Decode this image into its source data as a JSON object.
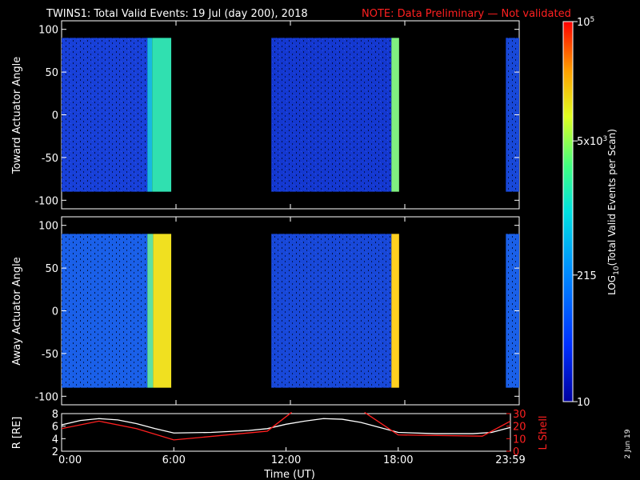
{
  "header": {
    "title": "TWINS1: Total Valid Events: 19 Jul (day 200), 2018",
    "note": "NOTE: Data Preliminary — Not validated",
    "note_color": "#ff2020"
  },
  "side_label": "2 Jun 19",
  "chart_data": [
    {
      "type": "heatmap",
      "ylabel": "Toward Actuator Angle",
      "ylim": [
        -110,
        110
      ],
      "yticks": [
        100,
        50,
        0,
        -50,
        -100
      ],
      "angle_range": [
        -90,
        90
      ],
      "xlim": [
        0,
        24
      ],
      "data_blocks": [
        {
          "start": 0.0,
          "end": 4.5,
          "level": "low",
          "color": "#1840d8"
        },
        {
          "start": 4.5,
          "end": 4.75,
          "level": "high",
          "color": "#18b8e0"
        },
        {
          "start": 4.75,
          "end": 5.75,
          "level": "high",
          "color": "#30e0b0"
        },
        {
          "start": 11.0,
          "end": 17.3,
          "level": "low",
          "color": "#1438d0"
        },
        {
          "start": 17.3,
          "end": 17.7,
          "level": "high",
          "color": "#80f080"
        },
        {
          "start": 23.3,
          "end": 24.0,
          "level": "low",
          "color": "#1848d8"
        }
      ]
    },
    {
      "type": "heatmap",
      "ylabel": "Away Actuator Angle",
      "ylim": [
        -110,
        110
      ],
      "yticks": [
        100,
        50,
        0,
        -50,
        -100
      ],
      "angle_range": [
        -90,
        90
      ],
      "xlim": [
        0,
        24
      ],
      "data_blocks": [
        {
          "start": 0.0,
          "end": 4.5,
          "level": "low",
          "color": "#1a60e8"
        },
        {
          "start": 4.5,
          "end": 4.8,
          "level": "high",
          "color": "#60e0a0"
        },
        {
          "start": 4.8,
          "end": 5.75,
          "level": "high",
          "color": "#f0e020"
        },
        {
          "start": 11.0,
          "end": 17.3,
          "level": "low",
          "color": "#1848d8"
        },
        {
          "start": 17.3,
          "end": 17.7,
          "level": "high",
          "color": "#ffd020"
        },
        {
          "start": 23.3,
          "end": 24.0,
          "level": "low",
          "color": "#1a60e8"
        }
      ]
    },
    {
      "type": "line",
      "ylabel": "R [RE]",
      "y2label": "L Shell",
      "xlabel": "Time (UT)",
      "xlim": [
        0,
        24
      ],
      "ylim": [
        2,
        8
      ],
      "yticks": [
        2,
        4,
        6,
        8
      ],
      "y2lim": [
        0,
        30
      ],
      "y2ticks": [
        0,
        10,
        20,
        30
      ],
      "xtick_labels": [
        {
          "t": 0,
          "label": "0:00"
        },
        {
          "t": 6,
          "label": "6:00"
        },
        {
          "t": 12,
          "label": "12:00"
        },
        {
          "t": 18,
          "label": "18:00"
        },
        {
          "t": 24,
          "label": "23:59"
        }
      ],
      "series": [
        {
          "color": "#ffffff",
          "x": [
            0,
            1,
            2,
            3,
            4,
            5,
            6,
            8,
            10,
            11,
            12,
            13,
            14,
            15,
            16,
            17,
            18,
            20,
            22,
            23,
            24
          ],
          "y": [
            6.2,
            6.9,
            7.2,
            7.0,
            6.4,
            5.6,
            4.9,
            5.0,
            5.3,
            5.6,
            6.3,
            6.8,
            7.2,
            7.1,
            6.6,
            5.8,
            5.0,
            4.8,
            4.8,
            5.0,
            5.8
          ]
        },
        {
          "color": "#ff2020",
          "axis": "right",
          "x": [
            0,
            2,
            4,
            6,
            11,
            12.3
          ],
          "y": [
            18,
            24,
            18,
            9,
            16,
            31
          ]
        },
        {
          "color": "#ff2020",
          "axis": "right",
          "x": [
            16.2,
            17.5,
            18,
            22.5,
            24
          ],
          "y": [
            31,
            18,
            13,
            12,
            24
          ]
        }
      ]
    }
  ],
  "colorbar": {
    "label_main": "LOG",
    "label_sub": "10",
    "label_rest": "(Total Valid Events per Scan)",
    "tick_labels": [
      {
        "frac": 1.0,
        "label": "10",
        "sup": "5"
      },
      {
        "frac": 0.686,
        "label": "5x10",
        "sup": "3"
      },
      {
        "frac": 0.333,
        "label": "215",
        "sup": ""
      },
      {
        "frac": 0.0,
        "label": "10",
        "sup": ""
      }
    ]
  }
}
